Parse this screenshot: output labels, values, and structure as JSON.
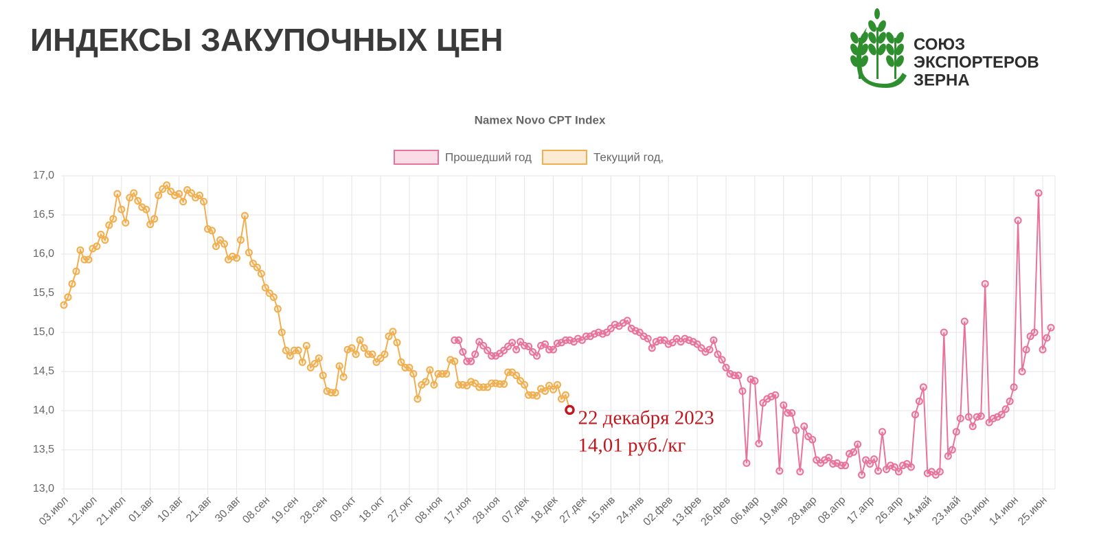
{
  "header": {
    "title": "ИНДЕКСЫ ЗАКУПОЧНЫХ ЦЕН"
  },
  "logo": {
    "lines": [
      "СОЮЗ",
      "ЭКСПОРТЕРОВ",
      "ЗЕРНА"
    ]
  },
  "chart_data": {
    "type": "line",
    "title": "Namex Novo CPT Index",
    "categories": [
      "03.июл",
      null,
      null,
      null,
      null,
      null,
      null,
      "12.июл",
      null,
      null,
      null,
      null,
      null,
      null,
      "21.июл",
      null,
      null,
      null,
      null,
      null,
      null,
      "01.авг",
      null,
      null,
      null,
      null,
      null,
      null,
      "10.авг",
      null,
      null,
      null,
      null,
      null,
      null,
      "21.авг",
      null,
      null,
      null,
      null,
      null,
      null,
      "30.авг",
      null,
      null,
      null,
      null,
      null,
      null,
      "08.сен",
      null,
      null,
      null,
      null,
      null,
      null,
      "19.сен",
      null,
      null,
      null,
      null,
      null,
      null,
      "28.сен",
      null,
      null,
      null,
      null,
      null,
      null,
      "09.окт",
      null,
      null,
      null,
      null,
      null,
      null,
      "18.окт",
      null,
      null,
      null,
      null,
      null,
      null,
      "27.окт",
      null,
      null,
      null,
      null,
      null,
      null,
      "08.ноя",
      null,
      null,
      null,
      null,
      null,
      null,
      "17.ноя",
      null,
      null,
      null,
      null,
      null,
      null,
      "28.ноя",
      null,
      null,
      null,
      null,
      null,
      null,
      "07.дек",
      null,
      null,
      null,
      null,
      null,
      null,
      "18.дек",
      null,
      null,
      null,
      null,
      null,
      null,
      "27.дек",
      null,
      null,
      null,
      null,
      null,
      null,
      "15.янв",
      null,
      null,
      null,
      null,
      null,
      null,
      "24.янв",
      null,
      null,
      null,
      null,
      null,
      null,
      "02.фев",
      null,
      null,
      null,
      null,
      null,
      null,
      "13.фев",
      null,
      null,
      null,
      null,
      null,
      null,
      "26.фев",
      null,
      null,
      null,
      null,
      null,
      null,
      "06.мар",
      null,
      null,
      null,
      null,
      null,
      null,
      "19.мар",
      null,
      null,
      null,
      null,
      null,
      null,
      "28.мар",
      null,
      null,
      null,
      null,
      null,
      null,
      "08.апр",
      null,
      null,
      null,
      null,
      null,
      null,
      "17.апр",
      null,
      null,
      null,
      null,
      null,
      null,
      "26.апр",
      null,
      null,
      null,
      null,
      null,
      null,
      "14.май",
      null,
      null,
      null,
      null,
      null,
      null,
      "23.май",
      null,
      null,
      null,
      null,
      null,
      null,
      "03.июн",
      null,
      null,
      null,
      null,
      null,
      null,
      "14.июн",
      null,
      null,
      null,
      null,
      null,
      null,
      "25.июн",
      null,
      null
    ],
    "series": [
      {
        "name": "Прошедший год",
        "color": "#e8739a",
        "values": [
          null,
          null,
          null,
          null,
          null,
          null,
          null,
          null,
          null,
          null,
          null,
          null,
          null,
          null,
          null,
          null,
          null,
          null,
          null,
          null,
          null,
          null,
          null,
          null,
          null,
          null,
          null,
          null,
          null,
          null,
          null,
          null,
          null,
          null,
          null,
          null,
          null,
          null,
          null,
          null,
          null,
          null,
          null,
          null,
          null,
          null,
          null,
          null,
          null,
          null,
          null,
          null,
          null,
          null,
          null,
          null,
          null,
          null,
          null,
          null,
          null,
          null,
          null,
          null,
          null,
          null,
          null,
          null,
          null,
          null,
          null,
          null,
          null,
          null,
          null,
          null,
          null,
          null,
          null,
          null,
          null,
          null,
          null,
          null,
          null,
          null,
          null,
          null,
          null,
          null,
          null,
          null,
          null,
          null,
          null,
          14.9,
          14.9,
          14.75,
          14.63,
          14.63,
          14.72,
          14.88,
          14.83,
          14.77,
          14.7,
          14.7,
          14.73,
          14.77,
          14.82,
          14.87,
          14.78,
          14.88,
          14.83,
          14.82,
          14.75,
          14.7,
          14.83,
          14.85,
          14.78,
          14.78,
          14.86,
          14.87,
          14.9,
          14.9,
          14.88,
          14.92,
          14.9,
          14.95,
          14.95,
          14.98,
          15.0,
          14.98,
          15.0,
          15.05,
          15.1,
          15.08,
          15.12,
          15.15,
          15.05,
          15.02,
          15.0,
          14.95,
          14.92,
          14.8,
          14.88,
          14.9,
          14.9,
          14.85,
          14.87,
          14.92,
          14.88,
          14.92,
          14.9,
          14.88,
          14.85,
          14.8,
          14.75,
          14.78,
          14.9,
          14.72,
          14.65,
          14.55,
          14.47,
          14.45,
          14.45,
          14.25,
          13.33,
          14.4,
          14.38,
          13.58,
          14.1,
          14.15,
          14.18,
          14.2,
          13.23,
          14.07,
          13.97,
          13.97,
          13.75,
          13.22,
          13.8,
          13.67,
          13.63,
          13.37,
          13.33,
          13.37,
          13.4,
          13.32,
          13.33,
          13.3,
          13.3,
          13.45,
          13.47,
          13.57,
          13.18,
          13.37,
          13.32,
          13.38,
          13.23,
          13.73,
          13.25,
          13.3,
          13.28,
          13.22,
          13.3,
          13.32,
          13.28,
          13.95,
          14.12,
          14.3,
          13.2,
          13.22,
          13.18,
          13.22,
          15.0,
          13.42,
          13.5,
          13.73,
          13.9,
          15.14,
          13.92,
          13.8,
          13.92,
          13.93,
          15.62,
          13.85,
          13.9,
          13.92,
          13.95,
          14.02,
          14.12,
          14.3,
          16.43,
          14.5,
          14.78,
          14.95,
          15.0,
          16.78,
          14.78,
          14.93,
          15.06
        ]
      },
      {
        "name": "Текущий год,",
        "color": "#f0ae4e",
        "values": [
          15.35,
          15.45,
          15.62,
          15.78,
          16.05,
          15.93,
          15.93,
          16.07,
          16.1,
          16.25,
          16.18,
          16.37,
          16.45,
          16.77,
          16.57,
          16.4,
          16.72,
          16.78,
          16.68,
          16.6,
          16.57,
          16.38,
          16.45,
          16.75,
          16.83,
          16.88,
          16.8,
          16.75,
          16.77,
          16.67,
          16.82,
          16.78,
          16.72,
          16.75,
          16.67,
          16.32,
          16.3,
          16.1,
          16.18,
          16.13,
          15.93,
          15.97,
          15.95,
          16.18,
          16.49,
          16.02,
          15.88,
          15.83,
          15.75,
          15.57,
          15.5,
          15.45,
          15.3,
          15.0,
          14.77,
          14.7,
          14.77,
          14.77,
          14.62,
          14.83,
          14.55,
          14.6,
          14.67,
          14.45,
          14.25,
          14.23,
          14.23,
          14.57,
          14.43,
          14.78,
          14.8,
          14.72,
          14.9,
          14.8,
          14.72,
          14.72,
          14.62,
          14.67,
          14.72,
          14.95,
          15.01,
          14.87,
          14.62,
          14.55,
          14.55,
          14.47,
          14.15,
          14.33,
          14.37,
          14.52,
          14.33,
          14.47,
          14.47,
          14.47,
          14.65,
          14.63,
          14.33,
          14.33,
          14.32,
          14.37,
          14.35,
          14.3,
          14.3,
          14.3,
          14.35,
          14.35,
          14.34,
          14.34,
          14.49,
          14.49,
          14.45,
          14.38,
          14.33,
          14.2,
          14.2,
          14.19,
          14.28,
          14.25,
          14.32,
          14.27,
          14.33,
          14.15,
          14.2,
          14.01,
          null,
          null,
          null,
          null,
          null,
          null,
          null,
          null,
          null,
          null,
          null,
          null,
          null,
          null,
          null,
          null,
          null,
          null,
          null,
          null,
          null,
          null,
          null,
          null,
          null,
          null,
          null,
          null,
          null,
          null,
          null,
          null,
          null,
          null,
          null,
          null,
          null,
          null,
          null,
          null,
          null,
          null,
          null,
          null,
          null,
          null,
          null,
          null,
          null,
          null,
          null,
          null,
          null,
          null,
          null,
          null,
          null,
          null,
          null,
          null,
          null,
          null,
          null,
          null,
          null,
          null,
          null,
          null,
          null,
          null,
          null,
          null,
          null,
          null,
          null,
          null,
          null,
          null,
          null,
          null,
          null,
          null,
          null,
          null,
          null,
          null,
          null,
          null,
          null,
          null,
          null,
          null,
          null,
          null,
          null,
          null,
          null,
          null,
          null,
          null,
          null,
          null,
          null,
          null,
          null,
          null,
          null,
          null,
          null,
          null,
          null,
          null,
          null,
          null,
          null,
          null,
          null
        ]
      }
    ],
    "ylim": [
      13,
      17
    ],
    "yticks": [
      {
        "value": 13,
        "label": "13,0"
      },
      {
        "value": 13.5,
        "label": "13,5"
      },
      {
        "value": 14,
        "label": "14,0"
      },
      {
        "value": 14.5,
        "label": "14,5"
      },
      {
        "value": 15,
        "label": "15,0"
      },
      {
        "value": 15.5,
        "label": "15,5"
      },
      {
        "value": 16,
        "label": "16,0"
      },
      {
        "value": 16.5,
        "label": "16,5"
      },
      {
        "value": 17,
        "label": "17,0"
      }
    ],
    "grid": true,
    "legend": "top",
    "annotation": {
      "series": 1,
      "index": 123,
      "color": "#c0181f",
      "lines": [
        "22 декабря 2023",
        "14,01 руб./кг"
      ]
    }
  }
}
